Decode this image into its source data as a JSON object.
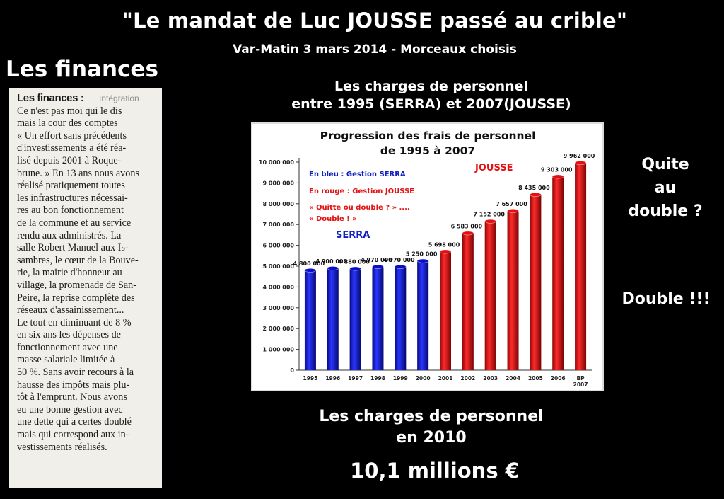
{
  "page": {
    "title": "\"Le mandat de Luc JOUSSE passé au crible\"",
    "subtitle": "Var-Matin 3 mars 2014 - Morceaux choisis",
    "section_title": "Les finances",
    "chart_header_line1": "Les charges de personnel",
    "chart_header_line2": "entre 1995 (SERRA) et 2007(JOUSSE)",
    "side_question_line1": "Quite",
    "side_question_line2": "au",
    "side_question_line3": "double ?",
    "side_double": "Double !!!",
    "bottom_line1": "Les charges de personnel",
    "bottom_line2": "en 2010",
    "bottom_total": "10,1 millions €"
  },
  "clipping": {
    "heading": "Les finances :",
    "faded_tab": "Intégration",
    "lines": [
      "Ce n'est pas moi qui le dis",
      "mais la cour des comptes",
      "« Un effort sans précédents",
      "d'investissements a été réa-",
      "lisé depuis 2001 à Roque-",
      "brune. » En 13 ans nous avons",
      "réalisé pratiquement toutes",
      "les infrastructures nécessai-",
      "res au bon fonctionnement",
      "de la commune et au service",
      "rendu aux administrés. La",
      "salle Robert Manuel aux Is-",
      "sambres, le cœur de la Bouve-",
      "rie, la mairie d'honneur au",
      "village, la promenade de San-",
      "Peire, la reprise complète des",
      "réseaux d'assainissement...",
      "Le tout en diminuant de 8 %",
      "en six ans les dépenses de",
      "fonctionnement avec une",
      "masse salariale limitée à",
      "50 %. Sans avoir recours à la",
      "hausse des impôts mais plu-",
      "tôt à l'emprunt. Nous avons",
      "eu une bonne gestion avec",
      "une dette qui a certes doublé",
      "mais qui correspond aux in-",
      "vestissements réalisés."
    ]
  },
  "chart_data": {
    "type": "bar",
    "title_line1": "Progression des frais de personnel",
    "title_line2": "de 1995 à 2007",
    "categories": [
      "1995",
      "1996",
      "1997",
      "1998",
      "1999",
      "2000",
      "2001",
      "2002",
      "2003",
      "2004",
      "2005",
      "2006",
      "BP 2007"
    ],
    "values": [
      4800000,
      4900000,
      4880000,
      4970000,
      4970000,
      5250000,
      5698000,
      6583000,
      7152000,
      7657000,
      8435000,
      9303000,
      9962000
    ],
    "value_labels": [
      "4 800 000",
      "4 900 000",
      "4 880 000",
      "4 970 000",
      "4 970 000",
      "5 250 000",
      "5 698 000",
      "6 583 000",
      "7 152 000",
      "7 657 000",
      "8 435 000",
      "9 303 000",
      "9 962 000"
    ],
    "series_group": [
      "SERRA",
      "SERRA",
      "SERRA",
      "SERRA",
      "SERRA",
      "SERRA",
      "JOUSSE",
      "JOUSSE",
      "JOUSSE",
      "JOUSSE",
      "JOUSSE",
      "JOUSSE",
      "JOUSSE"
    ],
    "ylim": [
      0,
      10000000
    ],
    "yticks": [
      0,
      1000000,
      2000000,
      3000000,
      4000000,
      5000000,
      6000000,
      7000000,
      8000000,
      9000000,
      10000000
    ],
    "ytick_labels": [
      "0",
      "1 000 000",
      "2 000 000",
      "3 000 000",
      "4 000 000",
      "5 000 000",
      "6 000 000",
      "7 000 000",
      "8 000 000",
      "9 000 000",
      "10 000 000"
    ],
    "colors": {
      "SERRA": "#0b10c8",
      "JOUSSE": "#e60f0f",
      "serra_text": "#1020c0",
      "jousse_text": "#e31313"
    },
    "annotations": {
      "blue_note": "En bleu : Gestion SERRA",
      "red_note": "En rouge : Gestion JOUSSE",
      "quip_line1": "« Quitte ou double ? » ....",
      "quip_line2": "« Double ! »",
      "serra_label": "SERRA",
      "jousse_label": "JOUSSE"
    },
    "grid": false
  }
}
